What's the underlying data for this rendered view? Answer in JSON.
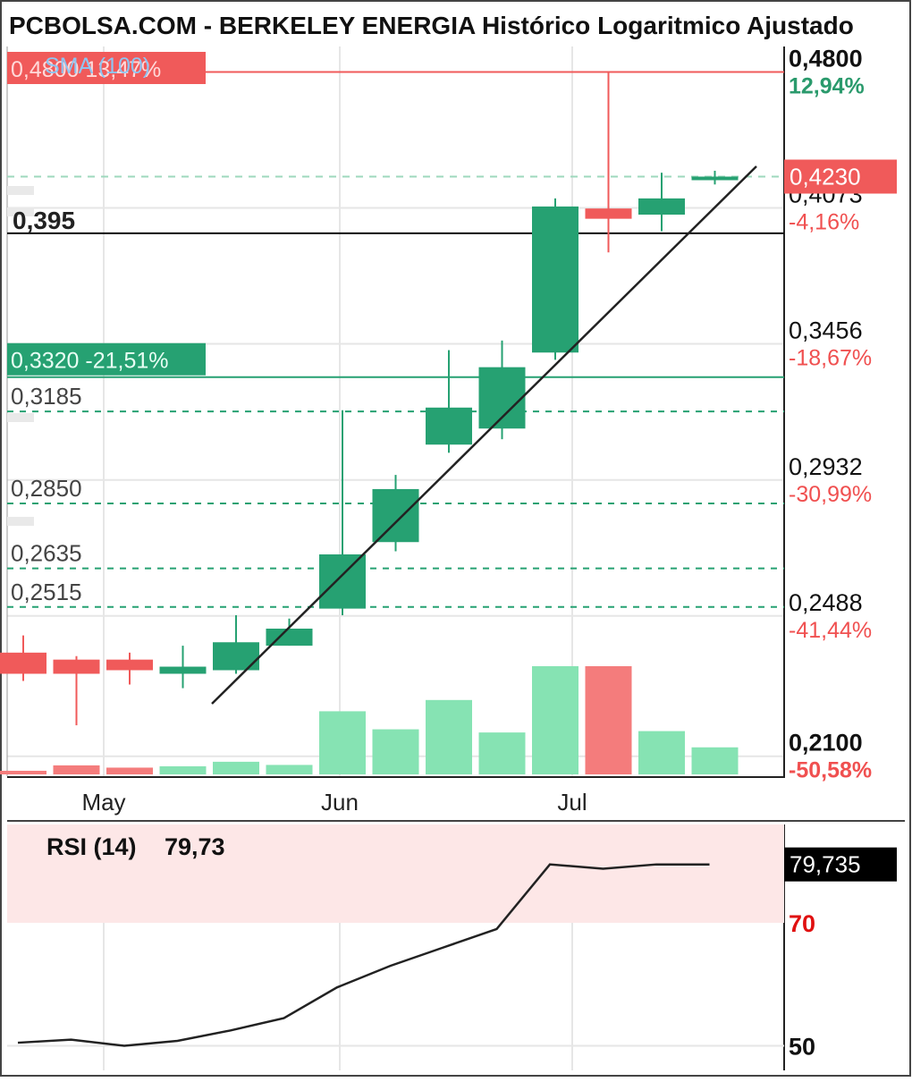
{
  "header": {
    "title": "PCBOLSA.COM - BERKELEY ENERGIA Histórico Logaritmico Ajustado"
  },
  "colors": {
    "up": "#26a172",
    "down": "#f05a5a",
    "vol_up": "#86e3b3",
    "vol_down": "#f47c7c",
    "rsi_zone": "#fde7e7",
    "grid": "#e6e6e6",
    "price_green": "#2a9a6c",
    "pct_red": "#f05050",
    "rsi70": "#e01010"
  },
  "chart_data": [
    {
      "type": "candlestick",
      "title": "BERKELEY ENERGIA Histórico Logaritmico Ajustado",
      "scale": "log",
      "x_ticks": [
        "May",
        "Jun",
        "Jul"
      ],
      "ylim": [
        0.205,
        0.495
      ],
      "right_levels": [
        {
          "price": "0,4800",
          "pct": "12,94%",
          "bold": true,
          "pct_color": "green"
        },
        {
          "price": "0,4073",
          "pct": "-4,16%",
          "bold": false,
          "pct_color": "red"
        },
        {
          "price": "0,3456",
          "pct": "-18,67%",
          "bold": false,
          "pct_color": "red"
        },
        {
          "price": "0,2932",
          "pct": "-30,99%",
          "bold": false,
          "pct_color": "red"
        },
        {
          "price": "0,2488",
          "pct": "-41,44%",
          "bold": false,
          "pct_color": "red"
        },
        {
          "price": "0,2100",
          "pct": "-50,58%",
          "bold": true,
          "pct_color": "red"
        }
      ],
      "last_price_label": "0,4230",
      "max_label": {
        "price": "0,4800",
        "pct": "13,47%"
      },
      "sma_label": "SMA (100)",
      "horizontal_level": {
        "value": 0.395,
        "label": "0,395"
      },
      "lines": [
        {
          "value": 0.332,
          "label": "0,3320",
          "pct": "-21,51%"
        }
      ],
      "supports": [
        {
          "value": 0.3185,
          "label": "0,3185"
        },
        {
          "value": 0.285,
          "label": "0,2850"
        },
        {
          "value": 0.2635,
          "label": "0,2635"
        },
        {
          "value": 0.2515,
          "label": "0,2515"
        }
      ],
      "candles": [
        {
          "o": 0.238,
          "h": 0.243,
          "l": 0.23,
          "c": 0.232,
          "v": 0.8
        },
        {
          "o": 0.236,
          "h": 0.237,
          "l": 0.218,
          "c": 0.232,
          "v": 2.0
        },
        {
          "o": 0.236,
          "h": 0.238,
          "l": 0.229,
          "c": 0.233,
          "v": 1.5
        },
        {
          "o": 0.232,
          "h": 0.24,
          "l": 0.228,
          "c": 0.234,
          "v": 1.8
        },
        {
          "o": 0.233,
          "h": 0.249,
          "l": 0.232,
          "c": 0.241,
          "v": 2.8
        },
        {
          "o": 0.24,
          "h": 0.248,
          "l": 0.24,
          "c": 0.245,
          "v": 2.1
        },
        {
          "o": 0.251,
          "h": 0.319,
          "l": 0.249,
          "c": 0.268,
          "v": 14.0
        },
        {
          "o": 0.272,
          "h": 0.295,
          "l": 0.269,
          "c": 0.29,
          "v": 10.0
        },
        {
          "o": 0.306,
          "h": 0.343,
          "l": 0.303,
          "c": 0.32,
          "v": 16.5
        },
        {
          "o": 0.312,
          "h": 0.347,
          "l": 0.308,
          "c": 0.336,
          "v": 9.3
        },
        {
          "o": 0.342,
          "h": 0.412,
          "l": 0.339,
          "c": 0.408,
          "v": 24.0
        },
        {
          "o": 0.407,
          "h": 0.48,
          "l": 0.386,
          "c": 0.402,
          "v": 24.0
        },
        {
          "o": 0.404,
          "h": 0.425,
          "l": 0.396,
          "c": 0.412,
          "v": 9.6
        },
        {
          "o": 0.422,
          "h": 0.426,
          "l": 0.419,
          "c": 0.423,
          "v": 6.0
        }
      ]
    },
    {
      "type": "line",
      "title": "RSI (14)",
      "value_label": "79,73",
      "last_value_label": "79,735",
      "y_ticks": [
        "70",
        "50"
      ],
      "ylim": [
        46,
        86
      ],
      "values": [
        50.5,
        51,
        50,
        50.8,
        52.5,
        54.5,
        59.5,
        63,
        66,
        69,
        79.5,
        78.8,
        79.5,
        79.5
      ]
    }
  ]
}
